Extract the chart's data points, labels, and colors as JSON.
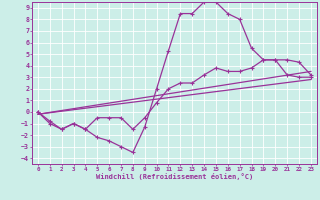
{
  "xlabel": "Windchill (Refroidissement éolien,°C)",
  "bg_color": "#cceee8",
  "grid_color": "#ffffff",
  "line_color": "#993399",
  "xlim": [
    -0.5,
    23.5
  ],
  "ylim": [
    -4.5,
    9.5
  ],
  "xticks": [
    0,
    1,
    2,
    3,
    4,
    5,
    6,
    7,
    8,
    9,
    10,
    11,
    12,
    13,
    14,
    15,
    16,
    17,
    18,
    19,
    20,
    21,
    22,
    23
  ],
  "yticks": [
    -4,
    -3,
    -2,
    -1,
    0,
    1,
    2,
    3,
    4,
    5,
    6,
    7,
    8,
    9
  ],
  "line1_x": [
    0,
    1,
    2,
    3,
    4,
    5,
    6,
    7,
    8,
    9,
    10,
    11,
    12,
    13,
    14,
    15,
    16,
    17,
    18,
    19,
    20,
    21,
    22,
    23
  ],
  "line1_y": [
    0,
    -1,
    -1.5,
    -1,
    -1.5,
    -2.2,
    -2.5,
    -3,
    -3.5,
    -1.3,
    2,
    5.3,
    8.5,
    8.5,
    9.5,
    9.5,
    8.5,
    8,
    5.5,
    4.5,
    4.5,
    3.2,
    3,
    3
  ],
  "line2_x": [
    0,
    1,
    2,
    3,
    4,
    5,
    6,
    7,
    8,
    9,
    10,
    11,
    12,
    13,
    14,
    15,
    16,
    17,
    18,
    19,
    20,
    21,
    22,
    23
  ],
  "line2_y": [
    0,
    -0.8,
    -1.5,
    -1,
    -1.5,
    -0.5,
    -0.5,
    -0.5,
    -1.5,
    -0.5,
    0.8,
    2,
    2.5,
    2.5,
    3.2,
    3.8,
    3.5,
    3.5,
    3.8,
    4.5,
    4.5,
    4.5,
    4.3,
    3.2
  ],
  "line3_x": [
    0,
    23
  ],
  "line3_y": [
    -0.2,
    2.8
  ],
  "line4_x": [
    0,
    23
  ],
  "line4_y": [
    -0.2,
    3.5
  ]
}
